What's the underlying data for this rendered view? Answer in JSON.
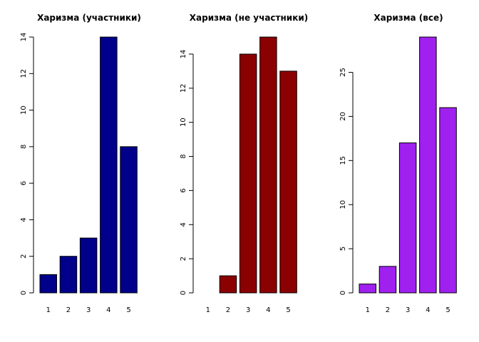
{
  "chart_data": [
    {
      "type": "bar",
      "title": "Харизма  (участники)",
      "categories": [
        "1",
        "2",
        "3",
        "4",
        "5"
      ],
      "values": [
        1,
        2,
        3,
        14,
        8
      ],
      "yticks": [
        0,
        2,
        4,
        6,
        8,
        10,
        12,
        14
      ],
      "ylim": [
        0,
        14
      ],
      "color": "#00008B",
      "grid": false
    },
    {
      "type": "bar",
      "title": "Харизма  (не участники)",
      "categories": [
        "1",
        "2",
        "3",
        "4",
        "5"
      ],
      "values": [
        0,
        1,
        14,
        15,
        13
      ],
      "yticks": [
        0,
        2,
        4,
        6,
        8,
        10,
        12,
        14
      ],
      "ylim": [
        0,
        15
      ],
      "color": "#8B0000",
      "grid": false
    },
    {
      "type": "bar",
      "title": "Харизма  (все)",
      "categories": [
        "1",
        "2",
        "3",
        "4",
        "5"
      ],
      "values": [
        1,
        3,
        17,
        29,
        21
      ],
      "yticks": [
        0,
        5,
        10,
        15,
        20,
        25
      ],
      "ylim": [
        0,
        29
      ],
      "color": "#A020F0",
      "grid": false
    }
  ]
}
